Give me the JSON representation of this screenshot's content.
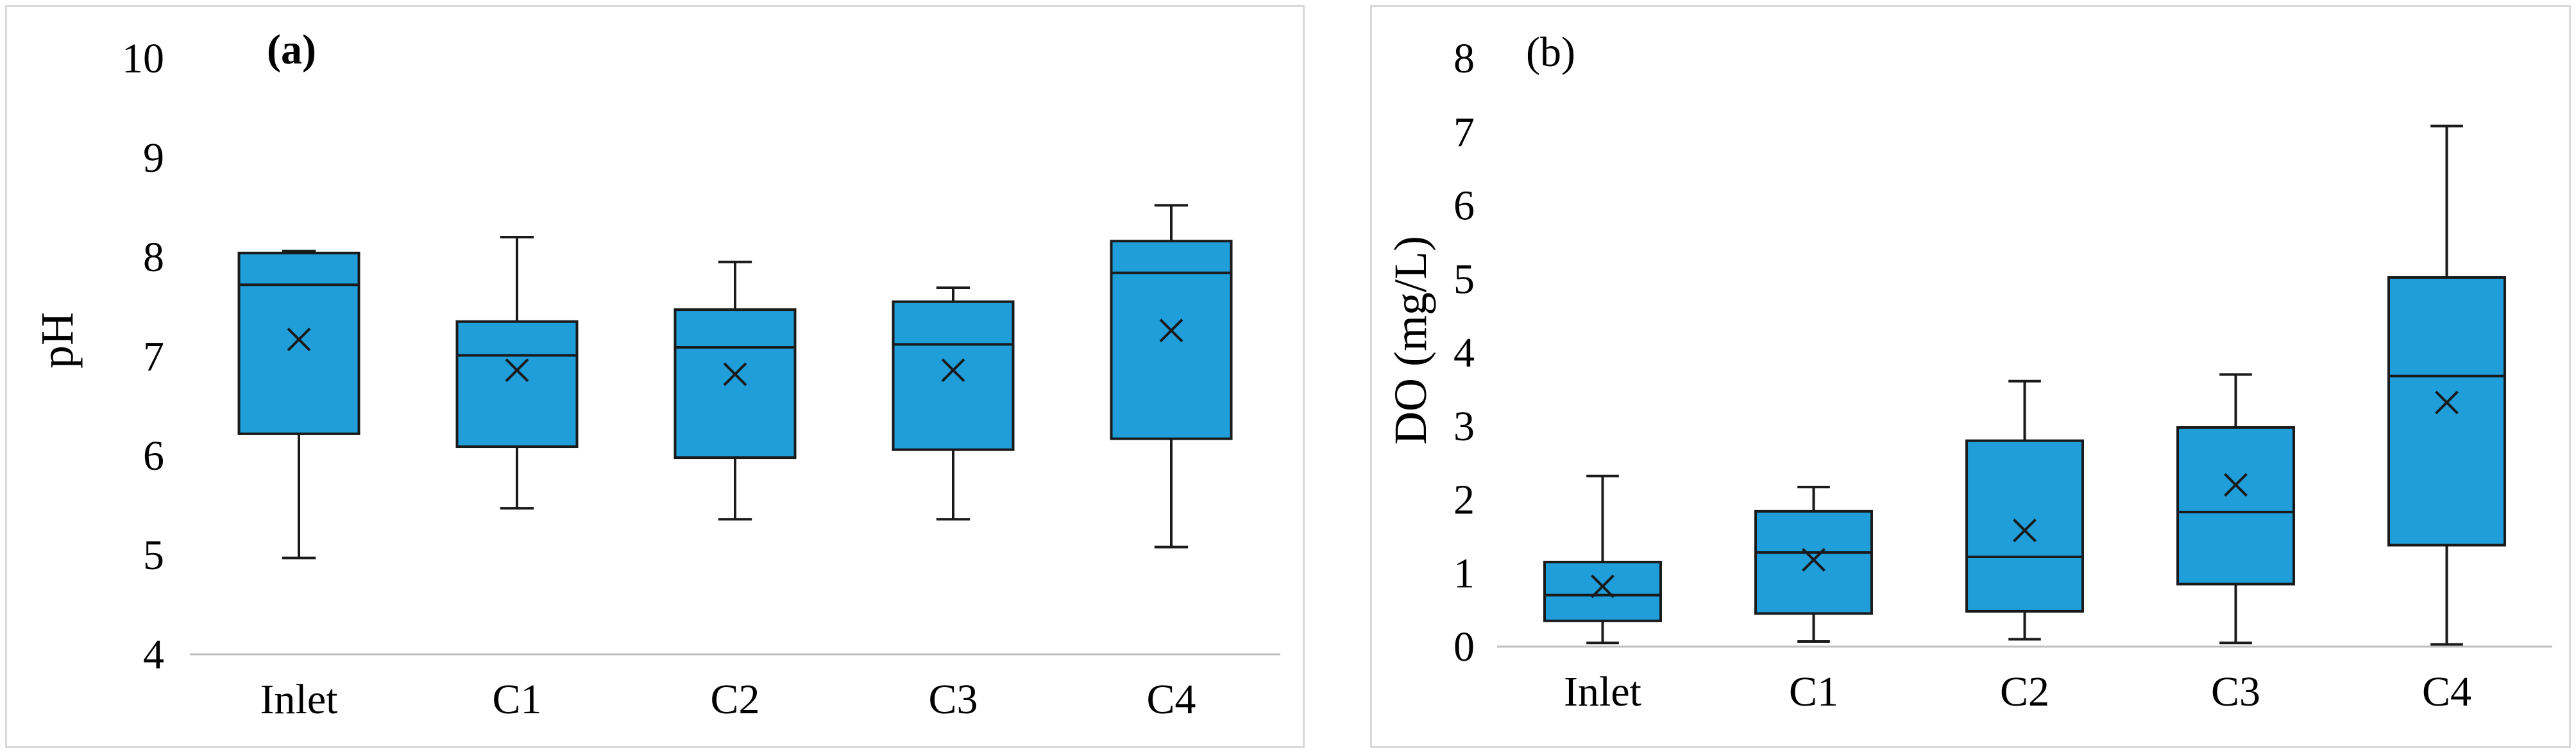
{
  "colors": {
    "box_fill": "#1f9ed9",
    "stroke": "#1a1a1a",
    "axis": "#bfbfbf"
  },
  "chart_data": [
    {
      "type": "box",
      "panel_label": "(a)",
      "title": "",
      "xlabel": "",
      "ylabel": "pH",
      "ylim": [
        4,
        10
      ],
      "yticks": [
        "4",
        "5",
        "6",
        "7",
        "8",
        "9",
        "10"
      ],
      "categories": [
        "Inlet",
        "C1",
        "C2",
        "C3",
        "C4"
      ],
      "boxes": [
        {
          "min": 4.97,
          "q1": 6.22,
          "median": 7.72,
          "q3": 8.04,
          "max": 8.06,
          "mean": 7.17
        },
        {
          "min": 5.47,
          "q1": 6.09,
          "median": 7.01,
          "q3": 7.35,
          "max": 8.2,
          "mean": 6.86
        },
        {
          "min": 5.36,
          "q1": 5.98,
          "median": 7.09,
          "q3": 7.47,
          "max": 7.95,
          "mean": 6.82
        },
        {
          "min": 5.36,
          "q1": 6.06,
          "median": 7.12,
          "q3": 7.55,
          "max": 7.69,
          "mean": 6.86
        },
        {
          "min": 5.08,
          "q1": 6.17,
          "median": 7.84,
          "q3": 8.16,
          "max": 8.52,
          "mean": 7.26
        }
      ]
    },
    {
      "type": "box",
      "panel_label": "(b)",
      "title": "",
      "xlabel": "",
      "ylabel": "DO (mg/L)",
      "ylim": [
        0,
        8
      ],
      "yticks": [
        "0",
        "1",
        "2",
        "3",
        "4",
        "5",
        "6",
        "7",
        "8"
      ],
      "categories": [
        "Inlet",
        "C1",
        "C2",
        "C3",
        "C4"
      ],
      "boxes": [
        {
          "min": 0.05,
          "q1": 0.35,
          "median": 0.7,
          "q3": 1.15,
          "max": 2.32,
          "mean": 0.82
        },
        {
          "min": 0.07,
          "q1": 0.45,
          "median": 1.28,
          "q3": 1.84,
          "max": 2.17,
          "mean": 1.18
        },
        {
          "min": 0.1,
          "q1": 0.48,
          "median": 1.22,
          "q3": 2.8,
          "max": 3.61,
          "mean": 1.58
        },
        {
          "min": 0.05,
          "q1": 0.85,
          "median": 1.83,
          "q3": 2.98,
          "max": 3.7,
          "mean": 2.2
        },
        {
          "min": 0.03,
          "q1": 1.38,
          "median": 3.68,
          "q3": 5.02,
          "max": 7.08,
          "mean": 3.32
        }
      ]
    }
  ]
}
